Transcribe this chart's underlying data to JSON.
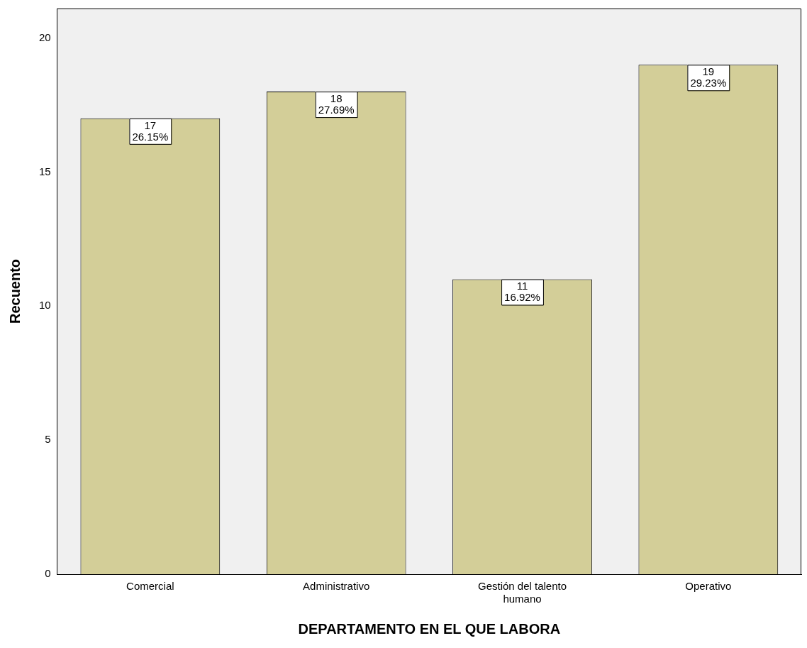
{
  "chart_data": {
    "type": "bar",
    "xlabel": "DEPARTAMENTO EN EL QUE LABORA",
    "ylabel": "Recuento",
    "categories": [
      "Comercial",
      "Administrativo",
      "Gestión del talento humano",
      "Operativo"
    ],
    "values": [
      17,
      18,
      11,
      19
    ],
    "value_labels": [
      "17\n26.15%",
      "18\n27.69%",
      "11\n16.92%",
      "19\n29.23%"
    ],
    "color": "#d3ce98",
    "ylim": [
      0,
      21.1
    ],
    "yticks": [
      0,
      5,
      10,
      15,
      20
    ],
    "grid": false,
    "legend": false
  }
}
